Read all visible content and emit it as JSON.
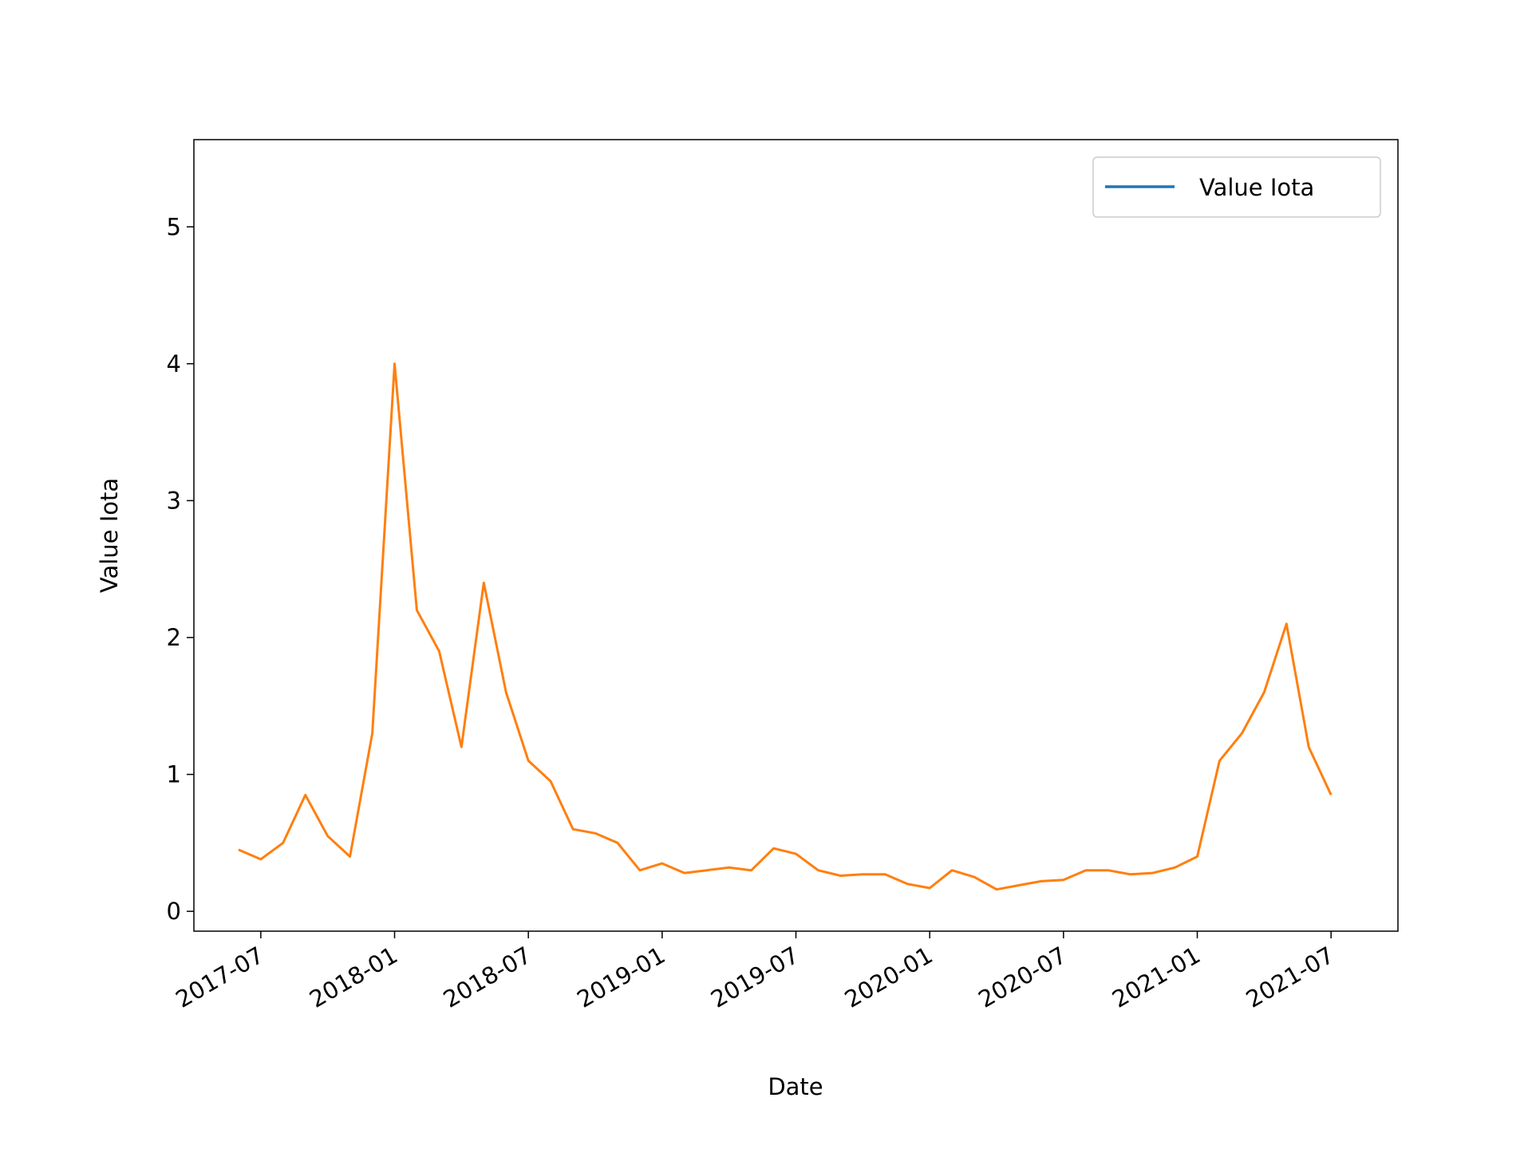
{
  "chart_data": {
    "type": "line",
    "x_label": "Date",
    "y_label": "Value Iota",
    "x": [
      "2017-06",
      "2017-07",
      "2017-08",
      "2017-09",
      "2017-10",
      "2017-11",
      "2017-12",
      "2018-01",
      "2018-02",
      "2018-03",
      "2018-04",
      "2018-05",
      "2018-06",
      "2018-07",
      "2018-08",
      "2018-09",
      "2018-10",
      "2018-11",
      "2018-12",
      "2019-01",
      "2019-02",
      "2019-03",
      "2019-04",
      "2019-05",
      "2019-06",
      "2019-07",
      "2019-08",
      "2019-09",
      "2019-10",
      "2019-11",
      "2019-12",
      "2020-01",
      "2020-02",
      "2020-03",
      "2020-04",
      "2020-05",
      "2020-06",
      "2020-07",
      "2020-08",
      "2020-09",
      "2020-10",
      "2020-11",
      "2020-12",
      "2021-01",
      "2021-02",
      "2021-03",
      "2021-04",
      "2021-05",
      "2021-06",
      "2021-07"
    ],
    "series": [
      {
        "name": "Value Iota",
        "color": "#1f77b4",
        "line_color": "#ff7f0e",
        "values": [
          0.45,
          0.38,
          0.5,
          0.85,
          0.55,
          0.4,
          1.3,
          4.0,
          2.2,
          1.9,
          1.2,
          2.4,
          1.6,
          1.1,
          0.95,
          0.6,
          0.57,
          0.5,
          0.3,
          0.35,
          0.28,
          0.3,
          0.32,
          0.3,
          0.46,
          0.42,
          0.3,
          0.26,
          0.27,
          0.27,
          0.2,
          0.17,
          0.3,
          0.25,
          0.16,
          0.19,
          0.22,
          0.23,
          0.3,
          0.3,
          0.27,
          0.28,
          0.32,
          0.4,
          1.1,
          1.3,
          1.6,
          2.1,
          1.2,
          0.85
        ]
      }
    ],
    "xlim": [
      "2017-04",
      "2021-10"
    ],
    "xticks": [
      "2017-07",
      "2018-01",
      "2018-07",
      "2019-01",
      "2019-07",
      "2020-01",
      "2020-07",
      "2021-01",
      "2021-07"
    ],
    "ylim": [
      -0.145,
      5.637
    ],
    "yticks": [
      0,
      1,
      2,
      3,
      4,
      5
    ],
    "legend": "upper right",
    "grid": false
  }
}
